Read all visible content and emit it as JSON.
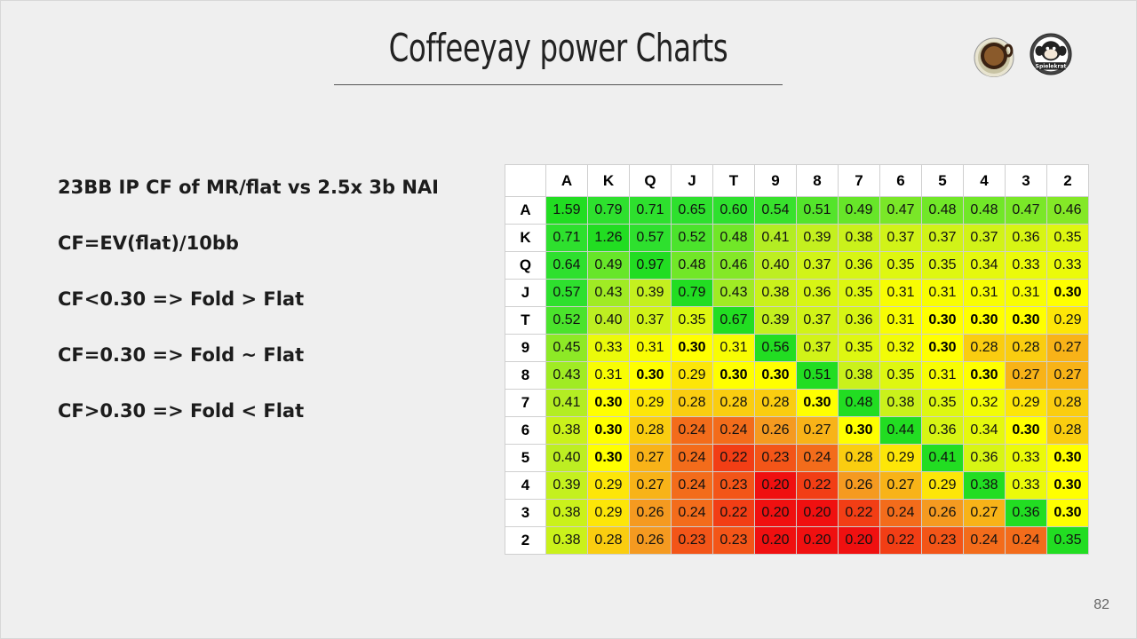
{
  "slide": {
    "title": "Coffeeyay power Charts",
    "page_number": "82"
  },
  "bullets": [
    "23BB IP CF of MR/flat vs 2.5x 3b NAI",
    "CF=EV(flat)/10bb",
    "CF<0.30 => Fold > Flat",
    "CF=0.30 => Fold ~ Flat",
    "CF>0.30 => Fold < Flat"
  ],
  "logos": {
    "coffee": "coffee-cup-logo",
    "monkey": "monkey-logo",
    "monkey_text": "Spielekrat"
  },
  "chart_data": {
    "type": "heatmap",
    "columns": [
      "A",
      "K",
      "Q",
      "J",
      "T",
      "9",
      "8",
      "7",
      "6",
      "5",
      "4",
      "3",
      "2"
    ],
    "rows": [
      "A",
      "K",
      "Q",
      "J",
      "T",
      "9",
      "8",
      "7",
      "6",
      "5",
      "4",
      "3",
      "2"
    ],
    "values": [
      [
        1.59,
        0.79,
        0.71,
        0.65,
        0.6,
        0.54,
        0.51,
        0.49,
        0.47,
        0.48,
        0.48,
        0.47,
        0.46
      ],
      [
        0.71,
        1.26,
        0.57,
        0.52,
        0.48,
        0.41,
        0.39,
        0.38,
        0.37,
        0.37,
        0.37,
        0.36,
        0.35
      ],
      [
        0.64,
        0.49,
        0.97,
        0.48,
        0.46,
        0.4,
        0.37,
        0.36,
        0.35,
        0.35,
        0.34,
        0.33,
        0.33
      ],
      [
        0.57,
        0.43,
        0.39,
        0.79,
        0.43,
        0.38,
        0.36,
        0.35,
        0.31,
        0.31,
        0.31,
        0.31,
        0.3
      ],
      [
        0.52,
        0.4,
        0.37,
        0.35,
        0.67,
        0.39,
        0.37,
        0.36,
        0.31,
        0.3,
        0.3,
        0.3,
        0.29
      ],
      [
        0.45,
        0.33,
        0.31,
        0.3,
        0.31,
        0.56,
        0.37,
        0.35,
        0.32,
        0.3,
        0.28,
        0.28,
        0.27
      ],
      [
        0.43,
        0.31,
        0.3,
        0.29,
        0.3,
        0.3,
        0.51,
        0.38,
        0.35,
        0.31,
        0.3,
        0.27,
        0.27
      ],
      [
        0.41,
        0.3,
        0.29,
        0.28,
        0.28,
        0.28,
        0.3,
        0.48,
        0.38,
        0.35,
        0.32,
        0.29,
        0.28
      ],
      [
        0.38,
        0.3,
        0.28,
        0.24,
        0.24,
        0.26,
        0.27,
        0.3,
        0.44,
        0.36,
        0.34,
        0.3,
        0.28
      ],
      [
        0.4,
        0.3,
        0.27,
        0.24,
        0.22,
        0.23,
        0.24,
        0.28,
        0.29,
        0.41,
        0.36,
        0.33,
        0.3
      ],
      [
        0.39,
        0.29,
        0.27,
        0.24,
        0.23,
        0.2,
        0.22,
        0.26,
        0.27,
        0.29,
        0.38,
        0.33,
        0.3
      ],
      [
        0.38,
        0.29,
        0.26,
        0.24,
        0.22,
        0.2,
        0.2,
        0.22,
        0.24,
        0.26,
        0.27,
        0.36,
        0.3
      ],
      [
        0.38,
        0.28,
        0.26,
        0.23,
        0.23,
        0.2,
        0.2,
        0.2,
        0.22,
        0.23,
        0.24,
        0.24,
        0.35
      ]
    ],
    "bold_value": 0.3,
    "pair_color": "#22dd22",
    "color_scale": {
      "low": "#f01010",
      "mid_low": "#f59a20",
      "mid": "#ffff00",
      "mid_high": "#bdee22",
      "high": "#2ee02e"
    }
  }
}
